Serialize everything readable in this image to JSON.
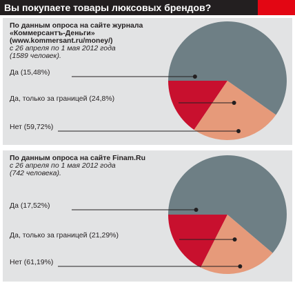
{
  "title": "Вы покупаете товары люксовых брендов?",
  "colors": {
    "yes": "#c8102e",
    "abroad": "#e69a7a",
    "no": "#6e7f85",
    "leader": "#231f20"
  },
  "chart_data": [
    {
      "type": "pie",
      "source_lines": [
        "По данным опроса на сайте журнала",
        "«Коммерсантъ-Деньги»",
        "(www.kommersant.ru/money/)"
      ],
      "period_lines": [
        "с 26 апреля по 1 мая 2012 года",
        "(1589 человек)."
      ],
      "labels": [
        "Да (15,48%)",
        "Да, только за границей (24,8%)",
        "Нет (59,72%)"
      ],
      "categories": [
        "Да",
        "Да, только за границей",
        "Нет"
      ],
      "values": [
        15.48,
        24.8,
        59.72
      ]
    },
    {
      "type": "pie",
      "source_lines": [
        "По данным опроса на сайте Finam.Ru"
      ],
      "period_lines": [
        "с 26 апреля по 1 мая 2012 года",
        "(742 человека)."
      ],
      "labels": [
        "Да (17,52%)",
        "Да, только за границей (21,29%)",
        "Нет (61,19%)"
      ],
      "categories": [
        "Да",
        "Да, только за границей",
        "Нет"
      ],
      "values": [
        17.52,
        21.29,
        61.19
      ]
    }
  ]
}
